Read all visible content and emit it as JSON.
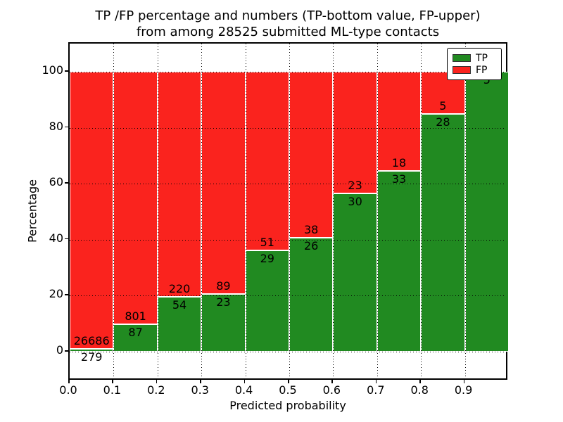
{
  "title": {
    "line1": "TP /FP percentage and numbers (TP-bottom value, FP-upper)",
    "line2": "from among 28525 submitted ML-type contacts"
  },
  "axes": {
    "x_label": "Predicted probability",
    "y_label": "Percentage",
    "x_ticks": [
      "0.0",
      "0.1",
      "0.2",
      "0.3",
      "0.4",
      "0.5",
      "0.6",
      "0.7",
      "0.8",
      "0.9"
    ],
    "y_ticks": [
      "0",
      "20",
      "40",
      "60",
      "80",
      "100"
    ]
  },
  "legend": {
    "items": [
      {
        "label": "TP",
        "color": "#218a21"
      },
      {
        "label": "FP",
        "color": "#fa231e"
      }
    ]
  },
  "colors": {
    "tp_green": "#218a21",
    "fp_red": "#fa231e",
    "bar_edge": "#ffffff",
    "grid": "#000000"
  },
  "chart_data": {
    "type": "bar",
    "stacked": true,
    "normalized_to_percent": 100,
    "title": "TP /FP percentage and numbers (TP-bottom value, FP-upper) from among 28525 submitted ML-type contacts",
    "xlabel": "Predicted probability",
    "ylabel": "Percentage",
    "categories": [
      0.0,
      0.1,
      0.2,
      0.3,
      0.4,
      0.5,
      0.6,
      0.7,
      0.8,
      0.9
    ],
    "bin_width": 0.1,
    "xlim": [
      0,
      1
    ],
    "ylim": [
      -10.5,
      110.1
    ],
    "grid": "dotted",
    "legend_position": "upper right",
    "total_contacts": 28525,
    "series": [
      {
        "name": "TP",
        "position": "bottom",
        "color": "#218a21",
        "values": [
          279,
          87,
          54,
          23,
          29,
          26,
          30,
          33,
          28,
          5
        ]
      },
      {
        "name": "FP",
        "position": "top",
        "color": "#fa231e",
        "values": [
          26686,
          801,
          220,
          89,
          51,
          38,
          23,
          18,
          5,
          0
        ]
      }
    ]
  }
}
